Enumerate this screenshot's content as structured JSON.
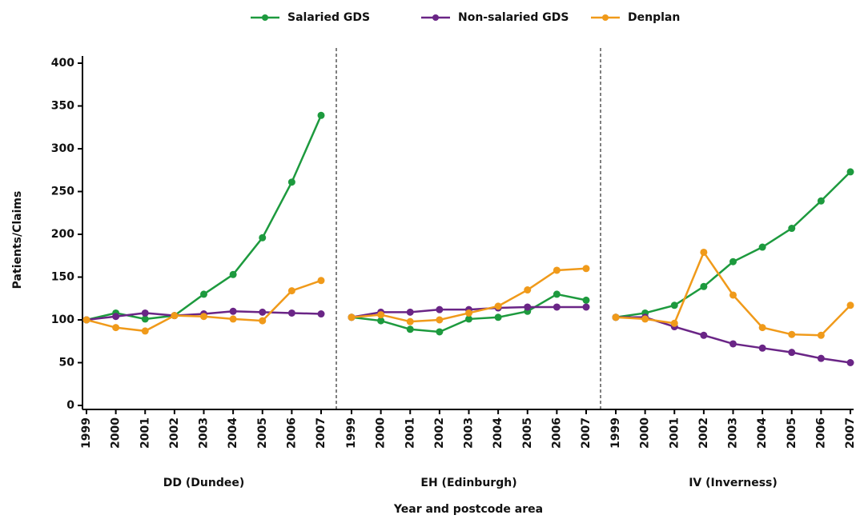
{
  "chart_data": {
    "type": "line",
    "ylabel": "Patients/Claims",
    "xlabel": "Year and postcode area",
    "ylim": [
      0,
      400
    ],
    "yticks": [
      0,
      50,
      100,
      150,
      200,
      250,
      300,
      350,
      400
    ],
    "legend": [
      {
        "name": "Salaried GDS",
        "color": "#1d9a3e"
      },
      {
        "name": "Non-salaried GDS",
        "color": "#6a2586"
      },
      {
        "name": "Denplan",
        "color": "#f09a1a"
      }
    ],
    "panels": [
      {
        "label": "DD (Dundee)",
        "categories": [
          "1999",
          "2000",
          "2001",
          "2002",
          "2003",
          "2004",
          "2005",
          "2006",
          "2007"
        ],
        "series": [
          {
            "values": [
              100,
              108,
              101,
              105,
              130,
              153,
              196,
              261,
              339
            ]
          },
          {
            "values": [
              100,
              104,
              108,
              105,
              107,
              110,
              109,
              108,
              107
            ]
          },
          {
            "values": [
              100,
              91,
              87,
              105,
              104,
              101,
              99,
              134,
              146
            ]
          }
        ]
      },
      {
        "label": "EH (Edinburgh)",
        "categories": [
          "1999",
          "2000",
          "2001",
          "2002",
          "2003",
          "2004",
          "2005",
          "2006",
          "2007"
        ],
        "series": [
          {
            "values": [
              103,
              99,
              89,
              86,
              101,
              103,
              110,
              130,
              123
            ]
          },
          {
            "values": [
              103,
              109,
              109,
              112,
              112,
              114,
              115,
              115,
              115
            ]
          },
          {
            "values": [
              103,
              106,
              98,
              100,
              108,
              116,
              135,
              158,
              160
            ]
          }
        ]
      },
      {
        "label": "IV (Inverness)",
        "categories": [
          "1999",
          "2000",
          "2001",
          "2002",
          "2003",
          "2004",
          "2005",
          "2006",
          "2007"
        ],
        "series": [
          {
            "values": [
              103,
              108,
              117,
              139,
              168,
              185,
              207,
              239,
              273
            ]
          },
          {
            "values": [
              103,
              103,
              92,
              82,
              72,
              67,
              62,
              55,
              50
            ]
          },
          {
            "values": [
              103,
              101,
              96,
              179,
              129,
              91,
              83,
              82,
              117
            ]
          }
        ]
      }
    ]
  }
}
